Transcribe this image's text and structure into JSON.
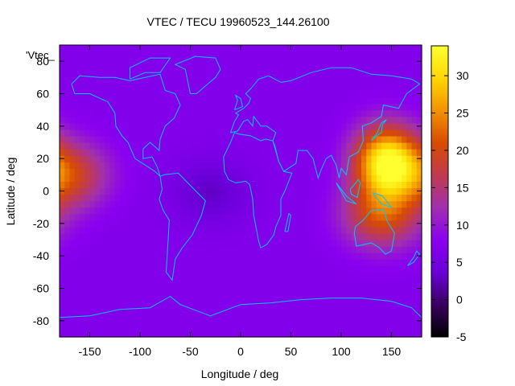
{
  "chart_data": {
    "type": "heatmap",
    "title": "VTEC / TECU 19960523_144.26100",
    "xlabel": "Longitude / deg",
    "ylabel": "Latitude / deg",
    "series_label": "'Vtec_",
    "xlim": [
      -180,
      180
    ],
    "ylim": [
      -90,
      90
    ],
    "x_ticks": [
      -150,
      -100,
      -50,
      0,
      50,
      100,
      150
    ],
    "y_ticks": [
      -80,
      -60,
      -40,
      -20,
      0,
      20,
      40,
      60,
      80
    ],
    "colorbar": {
      "range": [
        -5,
        34
      ],
      "ticks": [
        -5,
        0,
        5,
        10,
        15,
        20,
        25,
        30
      ],
      "palette": [
        "#000000",
        "#3a0060",
        "#6a00d8",
        "#8a00f0",
        "#a030b0",
        "#c03a50",
        "#d84c00",
        "#f39200",
        "#ffd700",
        "#ffff30"
      ]
    },
    "field_features": [
      {
        "lon": 145,
        "lat": 18,
        "value": 33,
        "note": "peak"
      },
      {
        "lon": 140,
        "lat": -15,
        "value": 20
      },
      {
        "lon": -170,
        "lat": 10,
        "value": 19
      },
      {
        "lon": -30,
        "lat": 0,
        "value": 3,
        "note": "minimum"
      }
    ],
    "background_value": 7,
    "grid": false,
    "coastlines_color": "#00c0ff"
  }
}
